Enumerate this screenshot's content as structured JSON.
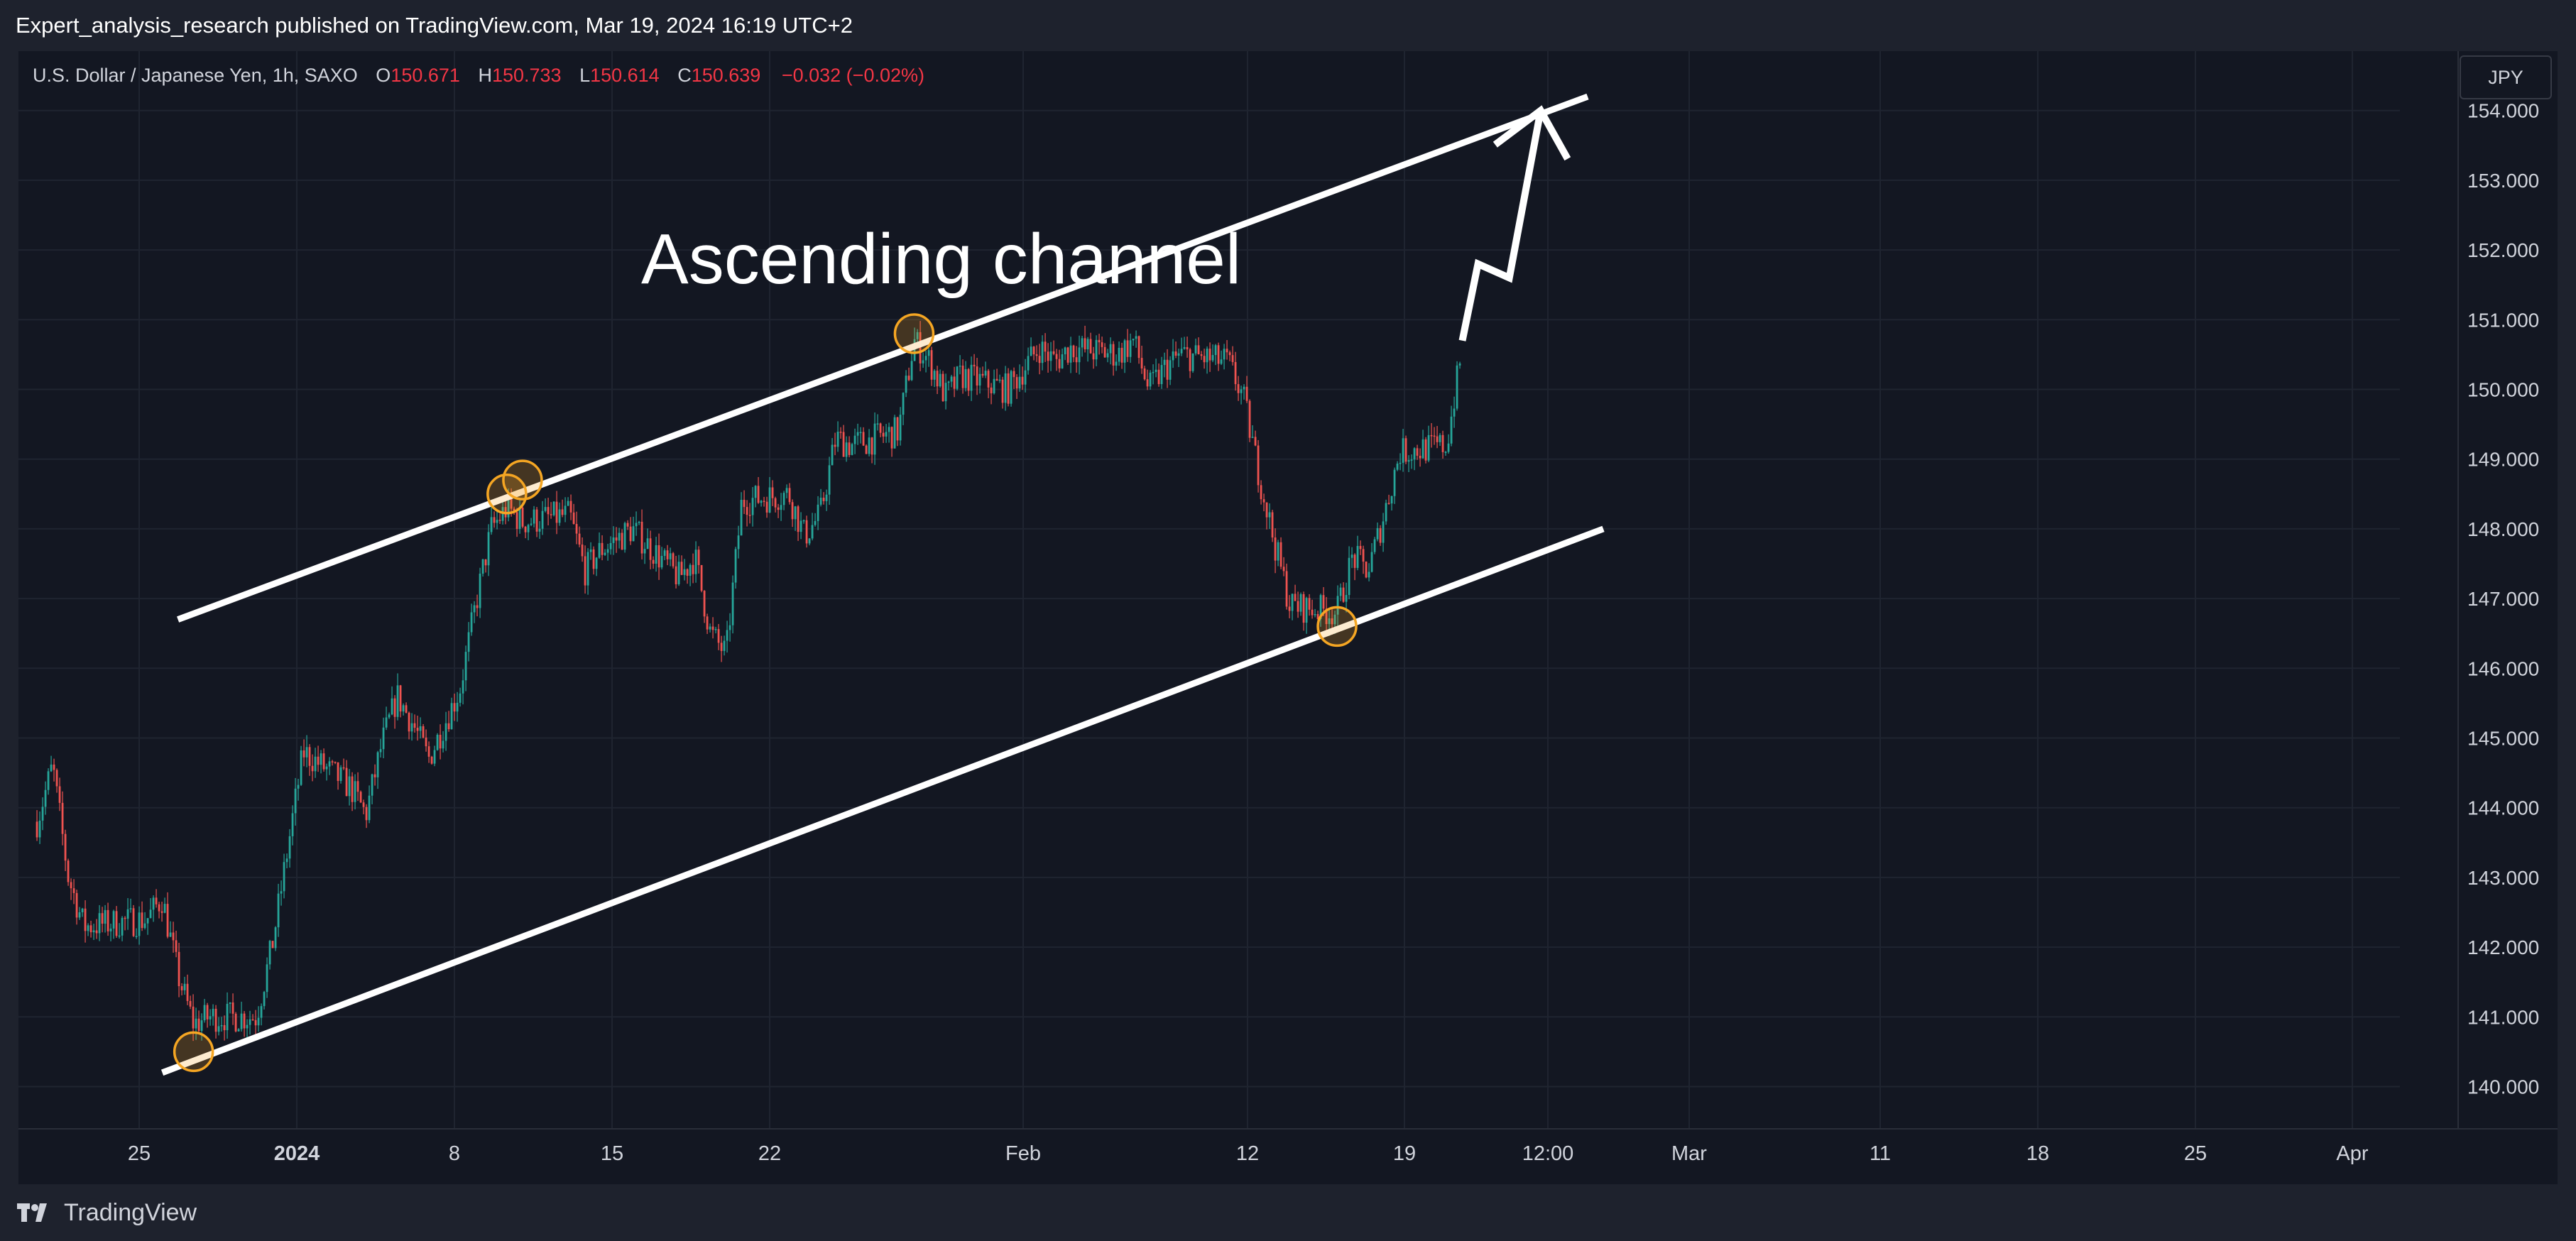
{
  "header": {
    "published_text": "Expert_analysis_research published on TradingView.com, Mar 19, 2024 16:19 UTC+2"
  },
  "legend": {
    "symbol": "U.S. Dollar / Japanese Yen, 1h, SAXO",
    "open_label": "O",
    "open": "150.671",
    "high_label": "H",
    "high": "150.733",
    "low_label": "L",
    "low": "150.614",
    "close_label": "C",
    "close": "150.639",
    "change": "−0.032 (−0.02%)"
  },
  "currency_button": "JPY",
  "annotation": "Ascending channel",
  "footer": {
    "brand": "TradingView"
  },
  "colors": {
    "up": "#26a69a",
    "down": "#ef5350",
    "channel": "#ffffff",
    "touch_marker": "#f5a623",
    "background": "#131722"
  },
  "chart_data": {
    "type": "candlestick",
    "title": "U.S. Dollar / Japanese Yen, 1h, SAXO",
    "y_axis_position": "right",
    "ylim": [
      139.4,
      154.3
    ],
    "y_ticks": [
      "140.000",
      "141.000",
      "142.000",
      "143.000",
      "144.000",
      "145.000",
      "146.000",
      "147.000",
      "148.000",
      "149.000",
      "150.000",
      "151.000",
      "152.000",
      "153.000",
      "154.000"
    ],
    "x_ticks": [
      "25",
      "2024",
      "8",
      "15",
      "22",
      "Feb",
      "12",
      "19",
      "12:00",
      "Mar",
      "11",
      "18",
      "25",
      "Apr"
    ],
    "price_path": [
      [
        "2023-12-19",
        143.8
      ],
      [
        "2023-12-20",
        144.6
      ],
      [
        "2023-12-21",
        143.0
      ],
      [
        "2023-12-22",
        142.3
      ],
      [
        "2023-12-26",
        142.4
      ],
      [
        "2023-12-27",
        142.7
      ],
      [
        "2023-12-28",
        141.6
      ],
      [
        "2023-12-29",
        140.9
      ],
      [
        "2023-12-30",
        141.0
      ],
      [
        "2024-01-02",
        141.0
      ],
      [
        "2024-01-03",
        142.0
      ],
      [
        "2024-01-04",
        143.4
      ],
      [
        "2024-01-05",
        144.8
      ],
      [
        "2024-01-08",
        144.3
      ],
      [
        "2024-01-09",
        143.9
      ],
      [
        "2024-01-10",
        144.9
      ],
      [
        "2024-01-11",
        145.6
      ],
      [
        "2024-01-12",
        145.2
      ],
      [
        "2024-01-13",
        144.7
      ],
      [
        "2024-01-15",
        145.7
      ],
      [
        "2024-01-16",
        146.9
      ],
      [
        "2024-01-17",
        148.0
      ],
      [
        "2024-01-18",
        148.3
      ],
      [
        "2024-01-19",
        148.1
      ],
      [
        "2024-01-22",
        148.2
      ],
      [
        "2024-01-23",
        147.4
      ],
      [
        "2024-01-24",
        147.7
      ],
      [
        "2024-01-26",
        148.0
      ],
      [
        "2024-01-29",
        147.3
      ],
      [
        "2024-01-30",
        147.6
      ],
      [
        "2024-01-31",
        146.5
      ],
      [
        "2024-02-01",
        146.2
      ],
      [
        "2024-02-02",
        148.4
      ],
      [
        "2024-02-05",
        148.5
      ],
      [
        "2024-02-06",
        147.9
      ],
      [
        "2024-02-07",
        148.2
      ],
      [
        "2024-02-08",
        149.3
      ],
      [
        "2024-02-09",
        149.2
      ],
      [
        "2024-02-12",
        149.4
      ],
      [
        "2024-02-13",
        150.7
      ],
      [
        "2024-02-14",
        150.4
      ],
      [
        "2024-02-15",
        149.9
      ],
      [
        "2024-02-16",
        150.2
      ],
      [
        "2024-02-19",
        150.0
      ],
      [
        "2024-02-20",
        150.3
      ],
      [
        "2024-02-21",
        150.6
      ],
      [
        "2024-02-22",
        150.4
      ],
      [
        "2024-02-23",
        150.6
      ],
      [
        "2024-02-26",
        150.5
      ],
      [
        "2024-02-27",
        150.7
      ],
      [
        "2024-02-28",
        150.0
      ],
      [
        "2024-02-29",
        150.3
      ],
      [
        "2024-03-01",
        150.5
      ],
      [
        "2024-03-04",
        150.4
      ],
      [
        "2024-03-05",
        149.9
      ],
      [
        "2024-03-06",
        148.8
      ],
      [
        "2024-03-07",
        147.8
      ],
      [
        "2024-03-08",
        146.9
      ],
      [
        "2024-03-11",
        146.8
      ],
      [
        "2024-03-12",
        147.6
      ],
      [
        "2024-03-13",
        147.4
      ],
      [
        "2024-03-14",
        148.2
      ],
      [
        "2024-03-15",
        149.1
      ],
      [
        "2024-03-18",
        149.2
      ],
      [
        "2024-03-19",
        150.6
      ]
    ],
    "channel": {
      "upper": [
        [
          "2023-12-28",
          146.7
        ],
        [
          "2024-03-27",
          154.2
        ]
      ],
      "lower": [
        [
          "2023-12-27",
          140.2
        ],
        [
          "2024-03-28",
          148.0
        ]
      ]
    },
    "touch_points": [
      [
        "2023-12-29",
        140.5
      ],
      [
        "2024-01-18",
        148.5
      ],
      [
        "2024-01-19",
        148.7
      ],
      [
        "2024-02-13",
        150.8
      ],
      [
        "2024-03-11",
        146.6
      ]
    ],
    "projection_arrow": [
      [
        "2024-03-19",
        150.7
      ],
      [
        "2024-03-20",
        151.8
      ],
      [
        "2024-03-22",
        151.6
      ],
      [
        "2024-03-24",
        154.0
      ]
    ]
  }
}
